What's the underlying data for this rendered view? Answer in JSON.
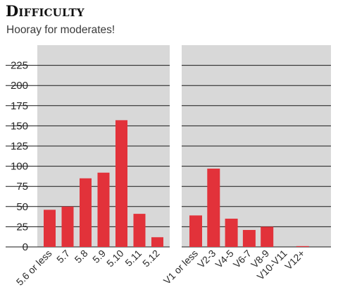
{
  "header": {
    "title": "Difficulty",
    "subtitle": "Hooray for moderates!"
  },
  "colors": {
    "bar": "#e2323a",
    "panel_bg": "#d8d8d8",
    "grid": "#1a1a1a"
  },
  "chart_data": [
    {
      "type": "bar",
      "title": "",
      "xlabel": "",
      "ylabel": "",
      "ylim": [
        0,
        250
      ],
      "yticks": [
        0,
        25,
        50,
        75,
        100,
        125,
        150,
        175,
        200,
        225
      ],
      "grid": true,
      "categories": [
        "5.6 or less",
        "5.7",
        "5.8",
        "5.9",
        "5.10",
        "5.11",
        "5.12"
      ],
      "values": [
        46,
        50,
        85,
        92,
        157,
        41,
        12
      ]
    },
    {
      "type": "bar",
      "title": "",
      "xlabel": "",
      "ylabel": "",
      "ylim": [
        0,
        250
      ],
      "yticks": [
        0,
        25,
        50,
        75,
        100,
        125,
        150,
        175,
        200,
        225
      ],
      "grid": true,
      "categories": [
        "V1 or less",
        "V2-3",
        "V4-5",
        "V6-7",
        "V8-9",
        "V10-V11",
        "V12+"
      ],
      "values": [
        39,
        97,
        35,
        21,
        25,
        0,
        1
      ]
    }
  ]
}
